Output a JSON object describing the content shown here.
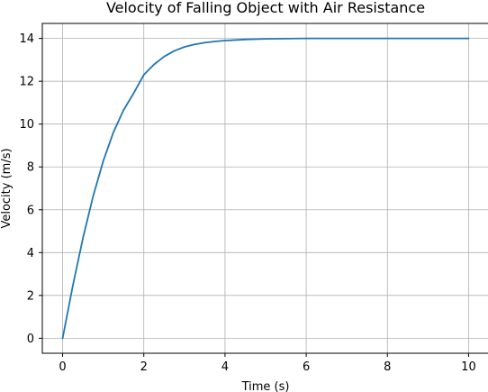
{
  "chart_data": {
    "type": "line",
    "title": "Velocity of Falling Object with Air Resistance",
    "xlabel": "Time (s)",
    "ylabel": "Velocity (m/s)",
    "xlim": [
      -0.5,
      10.5
    ],
    "ylim": [
      -0.7,
      14.7
    ],
    "xticks": [
      0,
      2,
      4,
      6,
      8,
      10
    ],
    "yticks": [
      0,
      2,
      4,
      6,
      8,
      10,
      12,
      14
    ],
    "grid": true,
    "series": [
      {
        "color": "#1f77b4",
        "x": [
          0,
          0.25,
          0.5,
          0.75,
          1.0,
          1.25,
          1.5,
          1.75,
          2.0,
          2.25,
          2.5,
          2.75,
          3.0,
          3.25,
          3.5,
          3.75,
          4.0,
          4.5,
          5.0,
          5.5,
          6.0,
          6.5,
          7.0,
          7.5,
          8.0,
          8.5,
          9.0,
          9.5,
          10.0
        ],
        "y": [
          0,
          2.44,
          4.67,
          6.62,
          8.27,
          9.61,
          10.65,
          11.44,
          12.3,
          12.78,
          13.15,
          13.42,
          13.6,
          13.72,
          13.8,
          13.86,
          13.9,
          13.95,
          13.98,
          13.99,
          14.0,
          14.0,
          14.0,
          14.0,
          14.0,
          14.0,
          14.0,
          14.0,
          14.0
        ]
      }
    ]
  }
}
